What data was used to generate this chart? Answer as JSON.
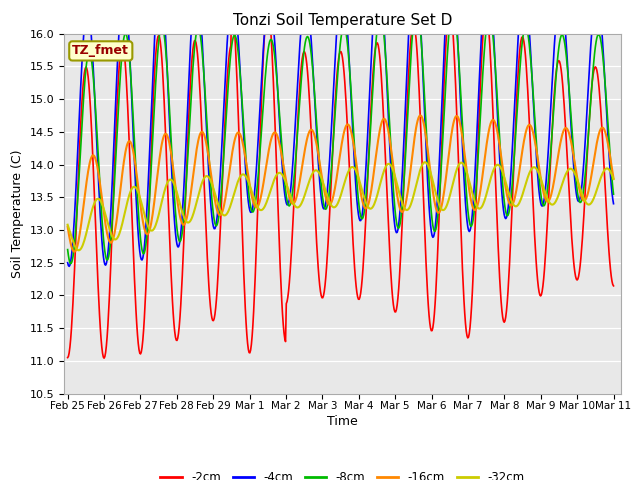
{
  "title": "Tonzi Soil Temperature Set D",
  "xlabel": "Time",
  "ylabel": "Soil Temperature (C)",
  "ylim": [
    10.5,
    16.0
  ],
  "series_labels": [
    "-2cm",
    "-4cm",
    "-8cm",
    "-16cm",
    "-32cm"
  ],
  "series_colors": [
    "#ff0000",
    "#0000ff",
    "#00bb00",
    "#ff8800",
    "#cccc00"
  ],
  "line_widths": [
    1.2,
    1.2,
    1.2,
    1.5,
    1.5
  ],
  "annotation_text": "TZ_fmet",
  "annotation_color": "#990000",
  "annotation_bg": "#ffffcc",
  "annotation_border": "#999900",
  "bg_color": "#e8e8e8",
  "grid_color": "#ffffff",
  "tick_labels": [
    "Feb 25",
    "Feb 26",
    "Feb 27",
    "Feb 28",
    "Feb 29",
    "Mar 1",
    "Mar 2",
    "Mar 3",
    "Mar 4",
    "Mar 5",
    "Mar 6",
    "Mar 7",
    "Mar 8",
    "Mar 9",
    "Mar 10",
    "Mar 11"
  ],
  "tick_positions": [
    0,
    1,
    2,
    3,
    4,
    5,
    6,
    7,
    8,
    9,
    10,
    11,
    12,
    13,
    14,
    15
  ]
}
